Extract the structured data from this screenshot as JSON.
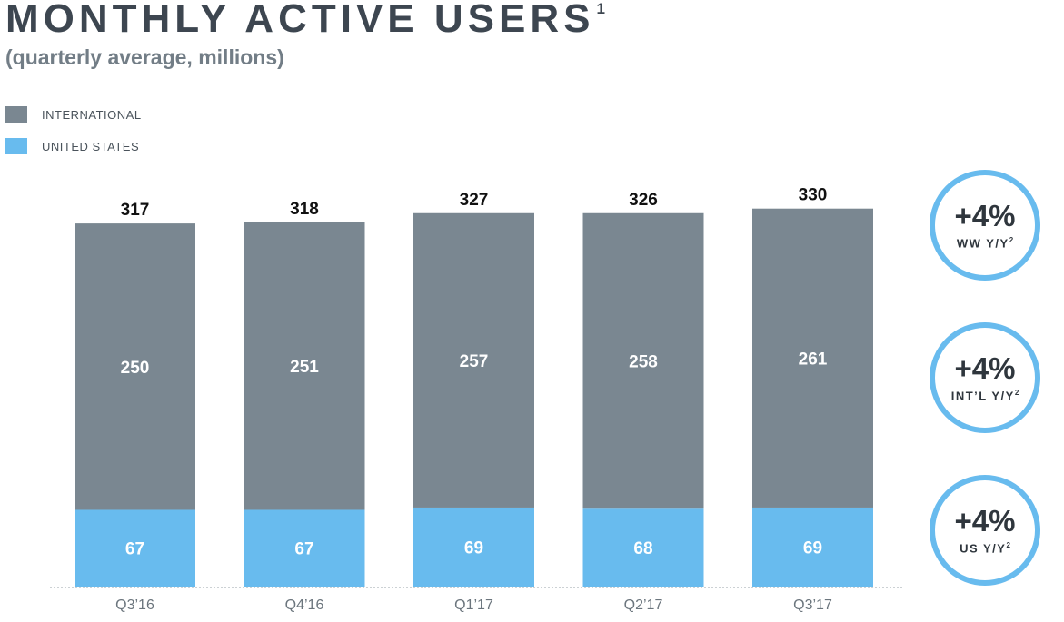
{
  "title": "MONTHLY ACTIVE USERS",
  "title_footnote": "1",
  "subtitle": "(quarterly average, millions)",
  "legend": [
    {
      "label": "INTERNATIONAL",
      "color": "#7a8791"
    },
    {
      "label": "UNITED STATES",
      "color": "#68bbee"
    }
  ],
  "badges": [
    {
      "value": "+4%",
      "label": "WW Y/Y",
      "footnote": "2"
    },
    {
      "value": "+4%",
      "label": "INT’L Y/Y",
      "footnote": "2"
    },
    {
      "value": "+4%",
      "label": "US Y/Y",
      "footnote": "2"
    }
  ],
  "chart_data": {
    "type": "bar",
    "stacked": true,
    "categories": [
      "Q3’16",
      "Q4’16",
      "Q1’17",
      "Q2’17",
      "Q3’17"
    ],
    "series": [
      {
        "name": "UNITED STATES",
        "values": [
          67,
          67,
          69,
          68,
          69
        ],
        "color": "#68bbee"
      },
      {
        "name": "INTERNATIONAL",
        "values": [
          250,
          251,
          257,
          258,
          261
        ],
        "color": "#7a8791"
      }
    ],
    "totals": [
      317,
      318,
      327,
      326,
      330
    ],
    "grid": false,
    "legend_position": "top-left"
  }
}
